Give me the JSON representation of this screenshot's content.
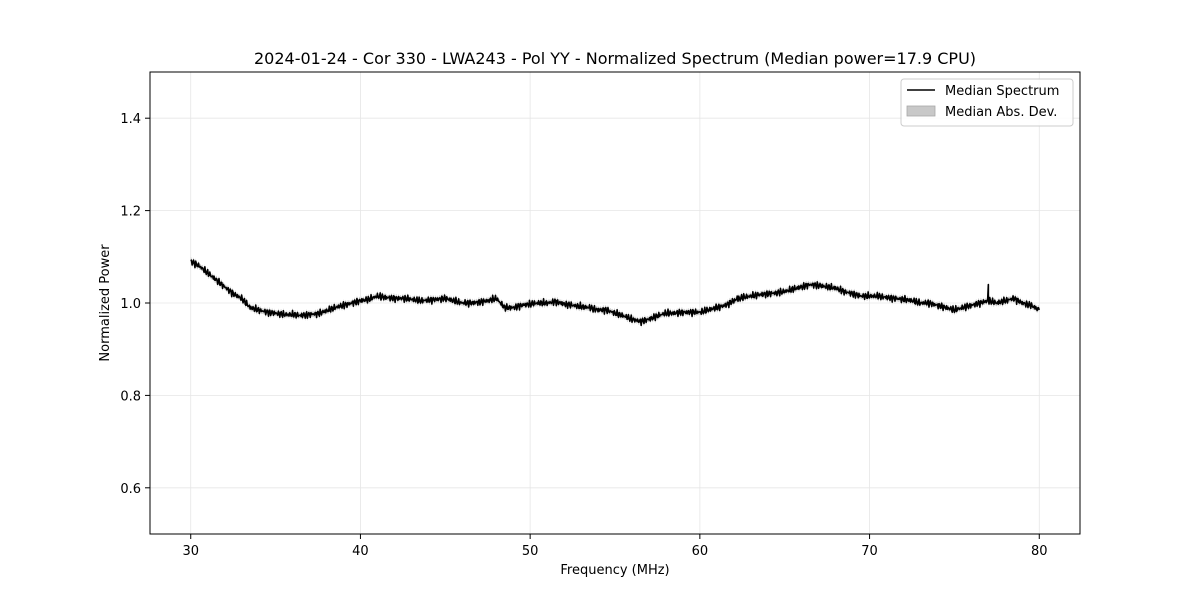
{
  "chart_data": {
    "type": "line",
    "title": "2024-01-24 - Cor 330 - LWA243 - Pol YY - Normalized Spectrum (Median power=17.9 CPU)",
    "xlabel": "Frequency (MHz)",
    "ylabel": "Normalized Power",
    "xlim": [
      27.6,
      82.4
    ],
    "ylim": [
      0.5,
      1.5
    ],
    "xticks": [
      30,
      40,
      50,
      60,
      70,
      80
    ],
    "yticks": [
      0.6,
      0.8,
      1.0,
      1.2,
      1.4
    ],
    "xtick_labels": [
      "30",
      "40",
      "50",
      "60",
      "70",
      "80"
    ],
    "ytick_labels": [
      "0.6",
      "0.8",
      "1.0",
      "1.2",
      "1.4"
    ],
    "grid": true,
    "legend_position": "top-right",
    "series": [
      {
        "name": "Median Spectrum",
        "color": "#000000",
        "x": [
          30.0,
          30.5,
          31.0,
          31.5,
          32.0,
          32.5,
          33.0,
          33.5,
          34.0,
          34.5,
          35.0,
          35.5,
          36.0,
          36.5,
          37.0,
          37.5,
          38.0,
          38.5,
          39.0,
          39.5,
          40.0,
          40.5,
          41.0,
          41.5,
          42.0,
          42.5,
          43.0,
          43.5,
          44.0,
          44.5,
          45.0,
          45.5,
          46.0,
          46.5,
          47.0,
          47.5,
          48.0,
          48.5,
          49.0,
          49.5,
          50.0,
          50.5,
          51.0,
          51.5,
          52.0,
          52.5,
          53.0,
          53.5,
          54.0,
          54.5,
          55.0,
          55.5,
          56.0,
          56.5,
          57.0,
          57.5,
          58.0,
          58.5,
          59.0,
          59.5,
          60.0,
          60.5,
          61.0,
          61.5,
          62.0,
          62.5,
          63.0,
          63.5,
          64.0,
          64.5,
          65.0,
          65.5,
          66.0,
          66.5,
          67.0,
          67.5,
          68.0,
          68.5,
          69.0,
          69.5,
          70.0,
          70.5,
          71.0,
          71.5,
          72.0,
          72.5,
          73.0,
          73.5,
          74.0,
          74.5,
          75.0,
          75.5,
          76.0,
          76.5,
          77.0,
          77.5,
          78.0,
          78.5,
          79.0,
          79.5,
          80.0
        ],
        "values": [
          1.09,
          1.08,
          1.065,
          1.05,
          1.035,
          1.02,
          1.01,
          0.99,
          0.985,
          0.98,
          0.978,
          0.975,
          0.975,
          0.973,
          0.975,
          0.977,
          0.983,
          0.99,
          0.995,
          1.0,
          1.005,
          1.008,
          1.015,
          1.012,
          1.01,
          1.01,
          1.008,
          1.005,
          1.006,
          1.008,
          1.01,
          1.005,
          1.0,
          1.0,
          1.002,
          1.005,
          1.01,
          0.99,
          0.99,
          0.995,
          0.998,
          1.0,
          1.0,
          1.003,
          0.998,
          0.995,
          0.992,
          0.99,
          0.985,
          0.985,
          0.978,
          0.972,
          0.965,
          0.96,
          0.965,
          0.972,
          0.978,
          0.978,
          0.98,
          0.98,
          0.98,
          0.985,
          0.99,
          0.995,
          1.005,
          1.012,
          1.015,
          1.018,
          1.02,
          1.022,
          1.025,
          1.03,
          1.035,
          1.04,
          1.038,
          1.035,
          1.032,
          1.025,
          1.02,
          1.015,
          1.015,
          1.015,
          1.012,
          1.01,
          1.008,
          1.005,
          1.0,
          1.0,
          0.995,
          0.99,
          0.985,
          0.99,
          0.995,
          1.0,
          1.005,
          1.0,
          1.005,
          1.01,
          1.0,
          0.995,
          0.985
        ]
      }
    ],
    "band": {
      "name": "Median Abs. Dev.",
      "color": "#c8c8c8",
      "halfwidth": 0.006
    },
    "spikes": [
      {
        "x": 77.0,
        "value": 1.04
      },
      {
        "x": 68.0,
        "value": 1.035
      },
      {
        "x": 62.2,
        "value": 1.015
      }
    ]
  }
}
